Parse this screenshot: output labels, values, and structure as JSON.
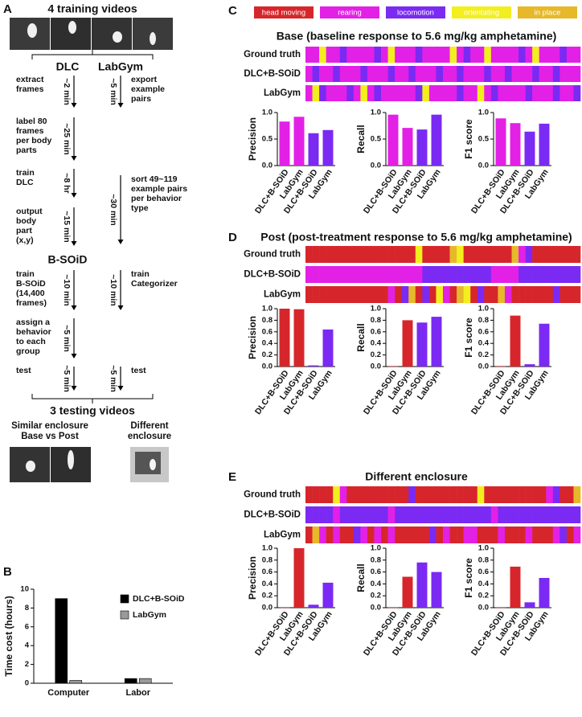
{
  "panel_labels": [
    "A",
    "B",
    "C",
    "D",
    "E"
  ],
  "panel_a": {
    "title": "4 training videos",
    "dlc": "DLC",
    "labgym": "LabGym",
    "bsoid": "B-SOiD",
    "dlc_steps": [
      {
        "text": [
          "extract",
          "frames"
        ],
        "time": "~2 min"
      },
      {
        "text": [
          "label 80",
          "frames",
          "per body",
          "parts"
        ],
        "time": "~25 min"
      },
      {
        "text": [
          "train",
          "DLC"
        ],
        "time": "~8 hr"
      },
      {
        "text": [
          "output",
          "body",
          "part",
          "(x,y)"
        ],
        "time": "~15 min"
      },
      {
        "text": [
          "train",
          "B-SOiD",
          "(14,400",
          "frames)"
        ],
        "time": "~10 min"
      },
      {
        "text": [
          "assign a",
          "behavior",
          "to each",
          "group"
        ],
        "time": "~5 min"
      },
      {
        "text": [
          "test"
        ],
        "time": "~5 min"
      }
    ],
    "labgym_steps": [
      {
        "text": [
          "export",
          "example",
          "pairs"
        ],
        "time": "~5 min"
      },
      {
        "text": [
          "sort 49~119",
          "example pairs",
          "per behavior",
          "type"
        ],
        "time": "~30 min"
      },
      {
        "text": [
          "train",
          "Categorizer"
        ],
        "time": "~10 min"
      },
      {
        "text": [
          "test"
        ],
        "time": "~5 min"
      }
    ],
    "testing_title": "3 testing videos",
    "test_groups": [
      [
        "Similar enclosure",
        "Base vs Post"
      ],
      [
        "Different",
        "enclosure"
      ]
    ]
  },
  "behavior_legend": [
    {
      "name": "head moving",
      "color": "#d7262b"
    },
    {
      "name": "rearing",
      "color": "#e320e6"
    },
    {
      "name": "locomotion",
      "color": "#7a2af3"
    },
    {
      "name": "orientating",
      "color": "#f3ee1e"
    },
    {
      "name": "in place",
      "color": "#e6b82a"
    }
  ],
  "panels": [
    {
      "title": "Base (baseline response to 5.6 mg/kg amphetamine)",
      "rows": [
        {
          "name": "Ground truth",
          "sequence": [
            1,
            1,
            3,
            1,
            1,
            2,
            1,
            1,
            1,
            1,
            2,
            1,
            3,
            1,
            1,
            1,
            2,
            1,
            1,
            1,
            1,
            3,
            1,
            2,
            1,
            1,
            3,
            1,
            1,
            1,
            1,
            2,
            1,
            3,
            1,
            1,
            1,
            2,
            1,
            1
          ]
        },
        {
          "name": "DLC+B-SOiD",
          "sequence": [
            1,
            2,
            1,
            1,
            2,
            1,
            1,
            1,
            2,
            1,
            1,
            1,
            2,
            1,
            1,
            2,
            1,
            1,
            1,
            2,
            1,
            1,
            2,
            1,
            1,
            1,
            2,
            1,
            1,
            2,
            1,
            1,
            1,
            2,
            1,
            1,
            2,
            1,
            1,
            1
          ]
        },
        {
          "name": "LabGym",
          "sequence": [
            1,
            3,
            2,
            1,
            1,
            1,
            2,
            1,
            3,
            1,
            2,
            1,
            1,
            1,
            1,
            1,
            2,
            3,
            1,
            1,
            1,
            1,
            2,
            1,
            1,
            3,
            1,
            2,
            1,
            1,
            1,
            1,
            2,
            1,
            1,
            1,
            2,
            1,
            1,
            2
          ]
        }
      ]
    },
    {
      "title": "Post (post-treatment response to 5.6 mg/kg amphetamine)",
      "rows": [
        {
          "name": "Ground truth",
          "sequence": [
            0,
            0,
            0,
            0,
            0,
            0,
            0,
            0,
            0,
            0,
            0,
            0,
            0,
            0,
            0,
            0,
            3,
            0,
            0,
            0,
            0,
            4,
            3,
            0,
            0,
            0,
            0,
            0,
            0,
            0,
            4,
            1,
            2,
            0,
            0,
            0,
            0,
            0,
            0,
            0
          ]
        },
        {
          "name": "DLC+B-SOiD",
          "sequence": [
            1,
            1,
            1,
            1,
            1,
            1,
            1,
            1,
            1,
            1,
            1,
            1,
            1,
            1,
            1,
            1,
            1,
            2,
            2,
            2,
            2,
            2,
            2,
            2,
            2,
            2,
            2,
            1,
            1,
            1,
            1,
            2,
            2,
            2,
            2,
            2,
            2,
            2,
            2,
            2
          ]
        },
        {
          "name": "LabGym",
          "sequence": [
            0,
            0,
            0,
            0,
            0,
            0,
            0,
            0,
            0,
            0,
            0,
            0,
            1,
            0,
            2,
            4,
            0,
            2,
            0,
            3,
            1,
            0,
            4,
            3,
            0,
            2,
            0,
            0,
            4,
            1,
            0,
            0,
            0,
            0,
            0,
            0,
            2,
            0,
            0,
            0
          ]
        }
      ]
    },
    {
      "title": "Different enclosure",
      "rows": [
        {
          "name": "Ground truth",
          "sequence": [
            0,
            0,
            0,
            0,
            3,
            1,
            0,
            0,
            0,
            0,
            0,
            0,
            0,
            0,
            0,
            2,
            0,
            0,
            0,
            0,
            0,
            0,
            0,
            0,
            0,
            3,
            0,
            0,
            0,
            0,
            0,
            0,
            0,
            0,
            0,
            1,
            2,
            0,
            0,
            4
          ]
        },
        {
          "name": "DLC+B-SOiD",
          "sequence": [
            2,
            2,
            2,
            2,
            1,
            2,
            2,
            2,
            2,
            2,
            2,
            2,
            1,
            2,
            2,
            2,
            2,
            2,
            2,
            2,
            2,
            2,
            2,
            2,
            2,
            2,
            2,
            1,
            2,
            2,
            2,
            2,
            2,
            2,
            2,
            2,
            2,
            2,
            2,
            2
          ]
        },
        {
          "name": "LabGym",
          "sequence": [
            0,
            4,
            1,
            0,
            1,
            0,
            0,
            2,
            1,
            0,
            1,
            0,
            1,
            0,
            0,
            0,
            0,
            0,
            2,
            0,
            1,
            0,
            0,
            1,
            1,
            0,
            0,
            0,
            1,
            0,
            0,
            0,
            1,
            0,
            0,
            0,
            1,
            2,
            0,
            1
          ]
        }
      ]
    }
  ],
  "chart_data": [
    {
      "type": "bar",
      "ylabel": "Time cost (hours)",
      "categories": [
        "Computer",
        "Labor"
      ],
      "series": [
        {
          "name": "DLC+B-SOiD",
          "color": "#000000",
          "values": [
            9,
            0.5
          ]
        },
        {
          "name": "LabGym",
          "color": "#9a9a9a",
          "values": [
            0.3,
            0.5
          ]
        }
      ],
      "ylim": [
        0,
        10
      ],
      "yticks": [
        0,
        2,
        4,
        6,
        8,
        10
      ],
      "legend": "upper right"
    },
    {
      "type": "bar",
      "ylabel": "Precision",
      "categories": [
        "DLC+B-SOiD",
        "LabGym",
        "DLC+B-SOiD",
        "LabGym"
      ],
      "values": [
        0.83,
        0.92,
        0.61,
        0.67
      ],
      "colors": [
        "#e320e6",
        "#e320e6",
        "#7a2af3",
        "#7a2af3"
      ],
      "ylim": [
        0,
        1
      ],
      "yticks": [
        {
          "value": 0,
          "label": "0.0"
        },
        0.5,
        {
          "value": 1,
          "label": "1.0"
        }
      ]
    },
    {
      "type": "bar",
      "ylabel": "Recall",
      "categories": [
        "DLC+B-SOiD",
        "LabGym",
        "DLC+B-SOiD",
        "LabGym"
      ],
      "values": [
        0.96,
        0.71,
        0.68,
        0.96
      ],
      "colors": [
        "#e320e6",
        "#e320e6",
        "#7a2af3",
        "#7a2af3"
      ],
      "ylim": [
        0,
        1
      ],
      "yticks": [
        {
          "value": 0,
          "label": "0.0"
        },
        0.5,
        {
          "value": 1,
          "label": "1.0"
        }
      ]
    },
    {
      "type": "bar",
      "ylabel": "F1 score",
      "categories": [
        "DLC+B-SOiD",
        "LabGym",
        "DLC+B-SOiD",
        "LabGym"
      ],
      "values": [
        0.89,
        0.8,
        0.64,
        0.79
      ],
      "colors": [
        "#e320e6",
        "#e320e6",
        "#7a2af3",
        "#7a2af3"
      ],
      "ylim": [
        0,
        1
      ],
      "yticks": [
        {
          "value": 0,
          "label": "0.0"
        },
        0.5,
        {
          "value": 1,
          "label": "1.0"
        }
      ]
    },
    {
      "type": "bar",
      "ylabel": "Precision",
      "categories": [
        "DLC+B-SOiD",
        "LabGym",
        "DLC+B-SOiD",
        "LabGym"
      ],
      "values": [
        1.0,
        0.99,
        0.02,
        0.64
      ],
      "colors": [
        "#d7262b",
        "#d7262b",
        "#7a2af3",
        "#7a2af3"
      ],
      "ylim": [
        0,
        1
      ],
      "yticks": [
        {
          "value": 0,
          "label": "0.0"
        },
        0.2,
        0.4,
        0.6,
        0.8,
        {
          "value": 1,
          "label": "1.0"
        }
      ]
    },
    {
      "type": "bar",
      "ylabel": "Recall",
      "categories": [
        "DLC+B-SOiD",
        "LabGym",
        "DLC+B-SOiD",
        "LabGym"
      ],
      "values": [
        0,
        0.8,
        0.76,
        0.86
      ],
      "colors": [
        "#d7262b",
        "#d7262b",
        "#7a2af3",
        "#7a2af3"
      ],
      "ylim": [
        0,
        1
      ],
      "yticks": [
        {
          "value": 0,
          "label": "0.0"
        },
        0.2,
        0.4,
        0.6,
        0.8,
        {
          "value": 1,
          "label": "1.0"
        }
      ]
    },
    {
      "type": "bar",
      "ylabel": "F1 score",
      "categories": [
        "DLC+B-SOiD",
        "LabGym",
        "DLC+B-SOiD",
        "LabGym"
      ],
      "values": [
        0,
        0.88,
        0.04,
        0.74
      ],
      "colors": [
        "#d7262b",
        "#d7262b",
        "#7a2af3",
        "#7a2af3"
      ],
      "ylim": [
        0,
        1
      ],
      "yticks": [
        {
          "value": 0,
          "label": "0.0"
        },
        0.2,
        0.4,
        0.6,
        0.8,
        {
          "value": 1,
          "label": "1.0"
        }
      ]
    },
    {
      "type": "bar",
      "ylabel": "Precision",
      "categories": [
        "DLC+B-SOiD",
        "LabGym",
        "DLC+B-SOiD",
        "LabGym"
      ],
      "values": [
        0,
        1.0,
        0.05,
        0.42
      ],
      "colors": [
        "#d7262b",
        "#d7262b",
        "#7a2af3",
        "#7a2af3"
      ],
      "ylim": [
        0,
        1
      ],
      "yticks": [
        {
          "value": 0,
          "label": "0.0"
        },
        0.2,
        0.4,
        0.6,
        0.8,
        {
          "value": 1,
          "label": "1.0"
        }
      ]
    },
    {
      "type": "bar",
      "ylabel": "Recall",
      "categories": [
        "DLC+B-SOiD",
        "LabGym",
        "DLC+B-SOiD",
        "LabGym"
      ],
      "values": [
        0,
        0.52,
        0.76,
        0.6
      ],
      "colors": [
        "#d7262b",
        "#d7262b",
        "#7a2af3",
        "#7a2af3"
      ],
      "ylim": [
        0,
        1
      ],
      "yticks": [
        {
          "value": 0,
          "label": "0.0"
        },
        0.2,
        0.4,
        0.6,
        0.8,
        {
          "value": 1,
          "label": "1.0"
        }
      ]
    },
    {
      "type": "bar",
      "ylabel": "F1 score",
      "categories": [
        "DLC+B-SOiD",
        "LabGym",
        "DLC+B-SOiD",
        "LabGym"
      ],
      "values": [
        0,
        0.69,
        0.09,
        0.5
      ],
      "colors": [
        "#d7262b",
        "#d7262b",
        "#7a2af3",
        "#7a2af3"
      ],
      "ylim": [
        0,
        1
      ],
      "yticks": [
        {
          "value": 0,
          "label": "0.0"
        },
        0.2,
        0.4,
        0.6,
        0.8,
        {
          "value": 1,
          "label": "1.0"
        }
      ]
    }
  ]
}
